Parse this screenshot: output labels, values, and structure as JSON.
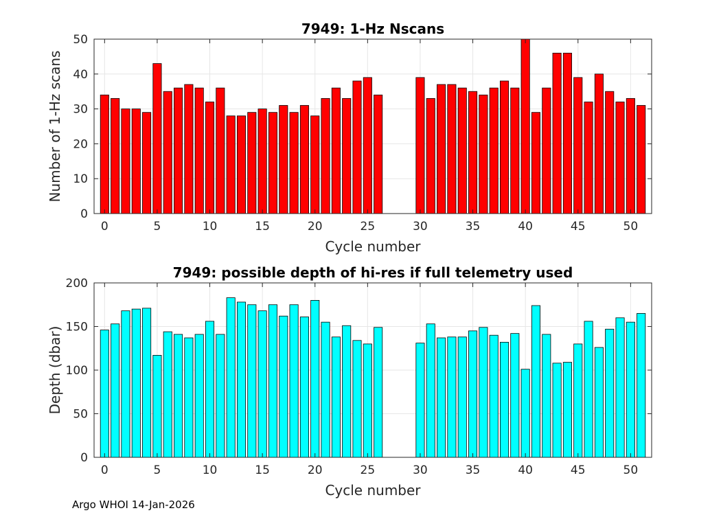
{
  "footer": "Argo WHOI 14-Jan-2026",
  "chart_data": [
    {
      "type": "bar",
      "title": "7949: 1-Hz Nscans",
      "xlabel": "Cycle number",
      "ylabel": "Number of 1-Hz scans",
      "xlim": [
        -1,
        52
      ],
      "ylim": [
        0,
        50
      ],
      "xticks": [
        0,
        5,
        10,
        15,
        20,
        25,
        30,
        35,
        40,
        45,
        50
      ],
      "yticks": [
        0,
        10,
        20,
        30,
        40,
        50
      ],
      "grid": true,
      "bar_color": "#ff0000",
      "x": [
        0,
        1,
        2,
        3,
        4,
        5,
        6,
        7,
        8,
        9,
        10,
        11,
        12,
        13,
        14,
        15,
        16,
        17,
        18,
        19,
        20,
        21,
        22,
        23,
        24,
        25,
        26,
        30,
        31,
        32,
        33,
        34,
        35,
        36,
        37,
        38,
        39,
        40,
        41,
        42,
        43,
        44,
        45,
        46,
        47,
        48,
        49,
        50,
        51
      ],
      "values": [
        34,
        33,
        30,
        30,
        29,
        43,
        35,
        36,
        37,
        36,
        32,
        36,
        28,
        28,
        29,
        30,
        29,
        31,
        29,
        31,
        28,
        33,
        36,
        33,
        38,
        39,
        34,
        39,
        33,
        37,
        37,
        36,
        35,
        34,
        36,
        38,
        36,
        50,
        29,
        36,
        46,
        46,
        39,
        32,
        40,
        35,
        32,
        33,
        31
      ]
    },
    {
      "type": "bar",
      "title": "7949: possible depth of hi-res if full telemetry used",
      "xlabel": "Cycle number",
      "ylabel": "Depth (dbar)",
      "xlim": [
        -1,
        52
      ],
      "ylim": [
        0,
        200
      ],
      "xticks": [
        0,
        5,
        10,
        15,
        20,
        25,
        30,
        35,
        40,
        45,
        50
      ],
      "yticks": [
        0,
        50,
        100,
        150,
        200
      ],
      "grid": true,
      "bar_color": "#00ffff",
      "x": [
        0,
        1,
        2,
        3,
        4,
        5,
        6,
        7,
        8,
        9,
        10,
        11,
        12,
        13,
        14,
        15,
        16,
        17,
        18,
        19,
        20,
        21,
        22,
        23,
        24,
        25,
        26,
        30,
        31,
        32,
        33,
        34,
        35,
        36,
        37,
        38,
        39,
        40,
        41,
        42,
        43,
        44,
        45,
        46,
        47,
        48,
        49,
        50,
        51
      ],
      "values": [
        146,
        153,
        168,
        170,
        171,
        117,
        144,
        141,
        137,
        141,
        156,
        141,
        183,
        178,
        175,
        168,
        175,
        162,
        175,
        161,
        180,
        155,
        138,
        151,
        134,
        130,
        149,
        131,
        153,
        137,
        138,
        138,
        145,
        149,
        140,
        132,
        142,
        101,
        174,
        141,
        108,
        109,
        130,
        156,
        126,
        147,
        160,
        155,
        165
      ]
    }
  ]
}
